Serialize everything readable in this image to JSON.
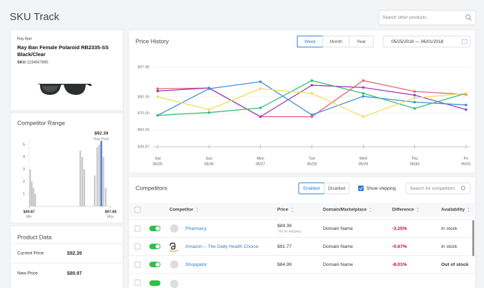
{
  "header": {
    "title": "SKU Track",
    "search_placeholder": "Search other products"
  },
  "product": {
    "brand": "Ray Ban",
    "name": [
      "Ray Ban Female Polaroid RB2335-SS",
      "Black/Clear"
    ],
    "sku_label": "SKU:",
    "sku": "1234567890"
  },
  "chart_data": [
    {
      "type": "line",
      "title": "Price History",
      "periods": [
        "Week",
        "Month",
        "Year"
      ],
      "active_period": "Week",
      "date_range": "05/25/2018  —  06/01/2018",
      "categories": [
        "Sat",
        "Sun",
        "Mon",
        "Tue",
        "Wed",
        "Thu",
        "Fri"
      ],
      "dates": [
        "05/25",
        "05/26",
        "05/27",
        "05/28",
        "05/29",
        "05/30",
        "06/01"
      ],
      "ylim": [
        49.87,
        97.88
      ],
      "yticks": [
        {
          "value": 49.87,
          "label": "$49.87"
        },
        {
          "value": 60,
          "label": "$60.00"
        },
        {
          "value": 70,
          "label": "$70.00"
        },
        {
          "value": 80,
          "label": "$80.00"
        },
        {
          "value": 97.88,
          "label": "$97.88"
        }
      ],
      "grid": true,
      "series": [
        {
          "color": "#e8607a",
          "values": [
            84.9,
            85.3,
            68,
            68,
            89.8,
            83.2,
            81.4
          ]
        },
        {
          "color": "#9b3fb5",
          "values": [
            83.5,
            85.3,
            68,
            87,
            85.6,
            81,
            72.3
          ]
        },
        {
          "color": "#3a8fd9",
          "values": [
            68.8,
            84.9,
            89.1,
            69.1,
            80.3,
            76.8,
            75.1
          ]
        },
        {
          "color": "#2fbf71",
          "values": [
            68.8,
            70.5,
            73.3,
            89.8,
            82.1,
            73,
            82.1
          ]
        },
        {
          "color": "#f0e05a",
          "values": [
            80,
            72.3,
            84.9,
            82.1,
            68,
            79.3,
            82.1
          ]
        }
      ]
    },
    {
      "type": "bar",
      "title": "Competitor Range",
      "x": [
        50.5,
        51.5,
        52.5,
        53.5,
        80,
        81.2,
        82.4,
        88.5,
        90,
        91.2,
        92.39,
        93.6,
        95
      ],
      "values": [
        3,
        2,
        1.5,
        1,
        4.5,
        4,
        3,
        2.5,
        4.8,
        5,
        5.3,
        4,
        1.5
      ],
      "color": "#c9c9c9",
      "xlim": [
        49.87,
        97.88
      ],
      "xticks": [
        {
          "value": 49.87,
          "label": "$49.87"
        },
        {
          "value": 97.88,
          "label": "$97.88"
        }
      ],
      "xtick_captions": [
        "Min",
        "Max"
      ],
      "ylim": [
        0,
        5.5
      ],
      "yticks": [
        1,
        2,
        3,
        4,
        5
      ],
      "highlight": {
        "x": 92.39,
        "label": "$92.39",
        "caption": "Your Price",
        "color": "#3a7bd5"
      }
    }
  ],
  "product_data": {
    "title": "Product Data",
    "rows": [
      [
        "Current Price",
        "$92.39"
      ],
      [
        "New Price",
        "$89.97"
      ]
    ]
  },
  "competitors": {
    "title": "Competitors",
    "filters": [
      "Enabled",
      "Disabled"
    ],
    "show_shipping": "Show shipping",
    "search_placeholder": "Search for competitors",
    "columns": [
      "Competitor",
      "Price",
      "Domain/Marketplace",
      "Difference",
      "Availability"
    ],
    "rows": [
      {
        "name": "Pharmacy",
        "price": "$89.39",
        "shipping": "+$3.99 shipping",
        "domain": "Domain Name",
        "difference": "-3.25%",
        "availability": "In stock"
      },
      {
        "name": "Amazon – The Daily Health Choice",
        "price": "$91.77",
        "domain": "Domain Name",
        "difference": "-0.67%",
        "availability": "In stock"
      },
      {
        "name": "Shopgator",
        "price": "$84.99",
        "domain": "Domain Name",
        "difference": "-8.01%",
        "availability": "Out of stock"
      }
    ]
  }
}
